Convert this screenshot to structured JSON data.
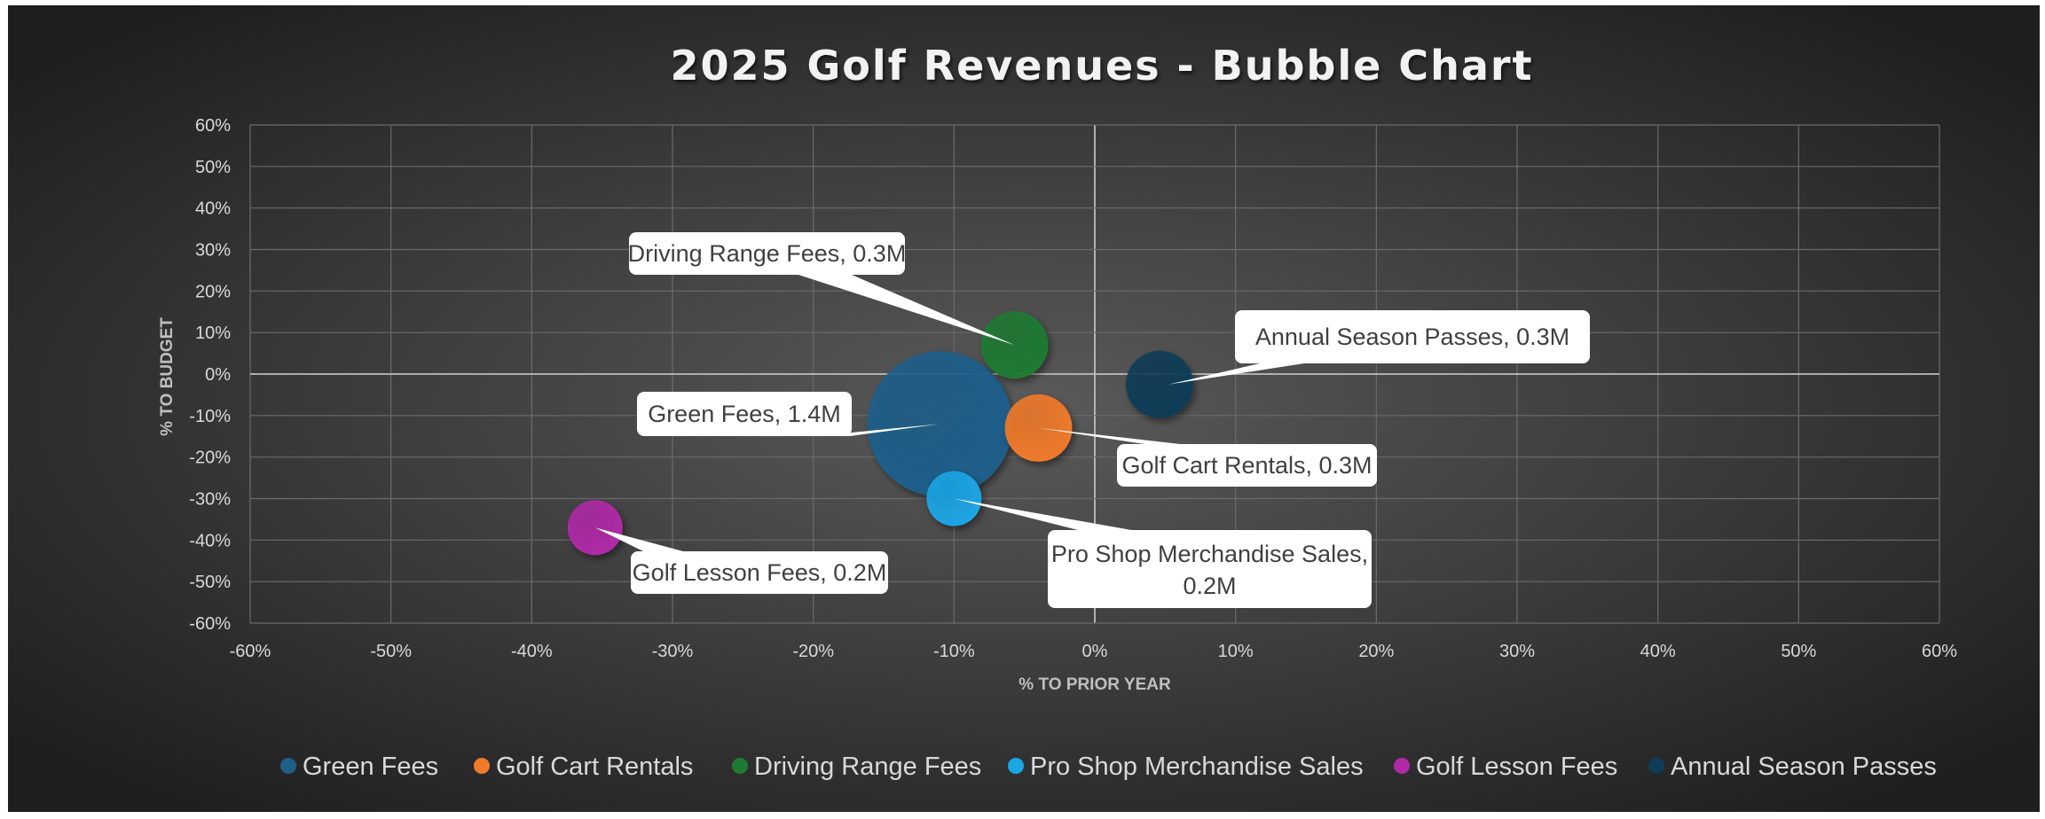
{
  "colors": {
    "background_center": "#5a5a5a",
    "background_edge": "#1e1e1e",
    "gridline": "#6b6b6b",
    "zero_line": "#bdbdbd"
  },
  "chart_data": {
    "type": "bubble",
    "title": "2025 Golf Revenues - Bubble Chart",
    "xlabel": "% TO PRIOR YEAR",
    "ylabel": "% TO BUDGET",
    "xlim": [
      -0.6,
      0.6
    ],
    "ylim": [
      -0.6,
      0.6
    ],
    "xticks": [
      "-60%",
      "-50%",
      "-40%",
      "-30%",
      "-20%",
      "-10%",
      "0%",
      "10%",
      "20%",
      "30%",
      "40%",
      "50%",
      "60%"
    ],
    "yticks": [
      "60%",
      "50%",
      "40%",
      "30%",
      "20%",
      "10%",
      "0%",
      "-10%",
      "-20%",
      "-30%",
      "-40%",
      "-50%",
      "-60%"
    ],
    "grid": true,
    "legend_position": "bottom",
    "series": [
      {
        "name": "Green Fees",
        "x": -0.11,
        "y": -0.12,
        "size": 1.4,
        "color": "#1f5f8b",
        "label": "Green Fees, 1.4M"
      },
      {
        "name": "Golf Cart Rentals",
        "x": -0.04,
        "y": -0.13,
        "size": 0.3,
        "color": "#f07a2a",
        "label": "Golf Cart Rentals, 0.3M"
      },
      {
        "name": "Driving Range Fees",
        "x": -0.057,
        "y": 0.07,
        "size": 0.3,
        "color": "#1f7a33",
        "label": "Driving Range Fees, 0.3M"
      },
      {
        "name": "Pro Shop Merchandise Sales",
        "x": -0.1,
        "y": -0.3,
        "size": 0.2,
        "color": "#1ba6e6",
        "label": "Pro Shop Merchandise Sales, 0.2M"
      },
      {
        "name": "Golf Lesson Fees",
        "x": -0.355,
        "y": -0.37,
        "size": 0.2,
        "color": "#b02aa8",
        "label": "Golf Lesson Fees, 0.2M"
      },
      {
        "name": "Annual Season Passes",
        "x": 0.046,
        "y": -0.025,
        "size": 0.3,
        "color": "#0f3d57",
        "label": "Annual Season Passes, 0.3M"
      }
    ]
  }
}
